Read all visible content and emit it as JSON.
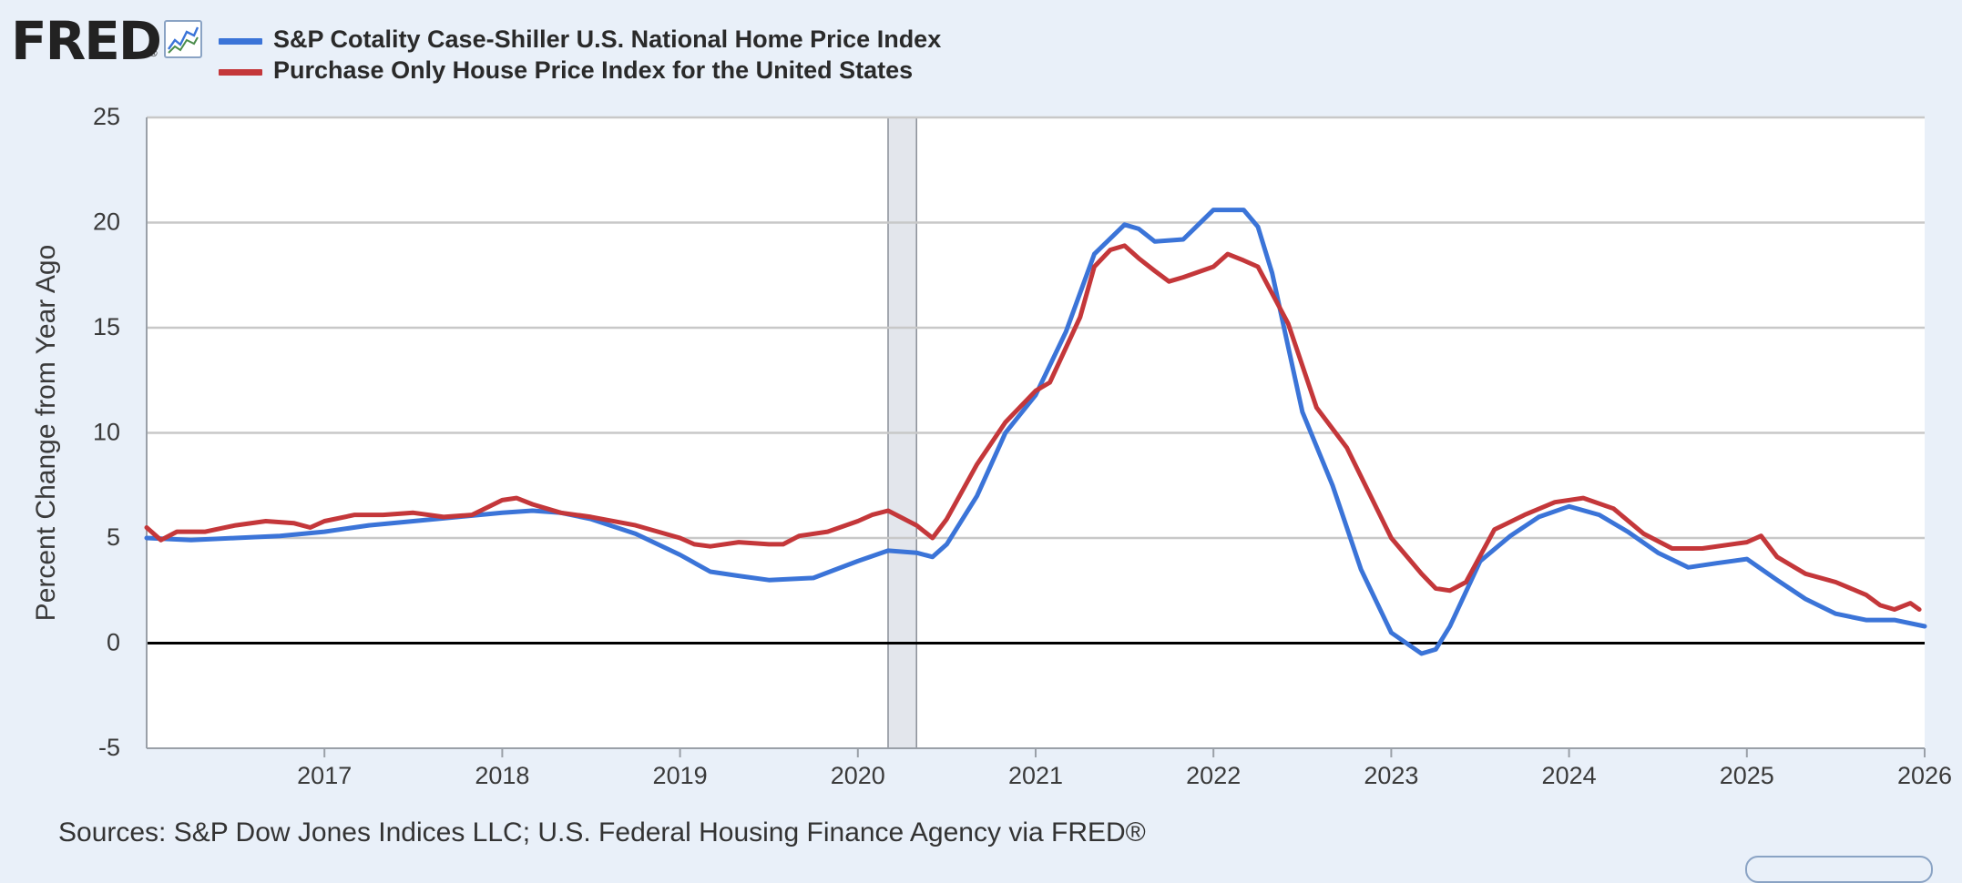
{
  "header": {
    "logo_text": "FRED",
    "logo_reg": "®",
    "chart_icon": "line-chart-icon"
  },
  "colors": {
    "background": "#e9f0f9",
    "plot_background": "#ffffff",
    "series_1": "#3b74d8",
    "series_2": "#c4373a",
    "recession_band": "#e3e6ec",
    "gridline": "#c8c8c8",
    "zero_line": "#000000"
  },
  "footer": {
    "source_text": "Sources: S&P Dow Jones Indices LLC; U.S. Federal Housing Finance Agency via FRED®"
  },
  "chart_data": {
    "type": "line",
    "title": "",
    "xlabel": "",
    "ylabel": "Percent Change from Year Ago",
    "xlim": [
      2016.0,
      2026.0
    ],
    "ylim": [
      -5,
      25
    ],
    "x_ticks": [
      "2017",
      "2018",
      "2019",
      "2020",
      "2021",
      "2022",
      "2023",
      "2024",
      "2025",
      "2026"
    ],
    "y_ticks": [
      "25",
      "20",
      "15",
      "10",
      "5",
      "0",
      "-5"
    ],
    "grid": true,
    "legend_position": "top-left",
    "recession_shading": [
      [
        2020.17,
        2020.33
      ]
    ],
    "series": [
      {
        "name": "S&P Cotality Case-Shiller U.S. National Home Price Index",
        "x": [
          2016.0,
          2016.25,
          2016.5,
          2016.75,
          2017.0,
          2017.25,
          2017.5,
          2017.75,
          2018.0,
          2018.17,
          2018.33,
          2018.5,
          2018.75,
          2019.0,
          2019.17,
          2019.33,
          2019.5,
          2019.75,
          2020.0,
          2020.17,
          2020.33,
          2020.42,
          2020.5,
          2020.67,
          2020.83,
          2021.0,
          2021.17,
          2021.33,
          2021.5,
          2021.58,
          2021.67,
          2021.83,
          2022.0,
          2022.17,
          2022.25,
          2022.33,
          2022.5,
          2022.67,
          2022.83,
          2023.0,
          2023.17,
          2023.25,
          2023.33,
          2023.5,
          2023.67,
          2023.83,
          2024.0,
          2024.17,
          2024.33,
          2024.5,
          2024.67,
          2024.83,
          2025.0,
          2025.17,
          2025.33,
          2025.5,
          2025.67,
          2025.83,
          2026.0
        ],
        "values": [
          5.0,
          4.9,
          5.0,
          5.1,
          5.3,
          5.6,
          5.8,
          6.0,
          6.2,
          6.3,
          6.2,
          5.9,
          5.2,
          4.2,
          3.4,
          3.2,
          3.0,
          3.1,
          3.9,
          4.4,
          4.3,
          4.1,
          4.7,
          7.0,
          10.0,
          11.8,
          14.8,
          18.5,
          19.9,
          19.7,
          19.1,
          19.2,
          20.6,
          20.6,
          19.8,
          17.6,
          11.0,
          7.5,
          3.5,
          0.5,
          -0.5,
          -0.3,
          0.8,
          3.9,
          5.1,
          6.0,
          6.5,
          6.1,
          5.3,
          4.3,
          3.6,
          3.8,
          4.0,
          3.0,
          2.1,
          1.4,
          1.1,
          1.1,
          0.8
        ]
      },
      {
        "name": "Purchase Only House Price Index for the United States",
        "x": [
          2016.0,
          2016.08,
          2016.17,
          2016.33,
          2016.5,
          2016.67,
          2016.83,
          2016.92,
          2017.0,
          2017.17,
          2017.33,
          2017.5,
          2017.67,
          2017.83,
          2018.0,
          2018.08,
          2018.17,
          2018.33,
          2018.5,
          2018.75,
          2019.0,
          2019.08,
          2019.17,
          2019.33,
          2019.5,
          2019.58,
          2019.67,
          2019.83,
          2020.0,
          2020.08,
          2020.17,
          2020.33,
          2020.42,
          2020.5,
          2020.67,
          2020.83,
          2021.0,
          2021.08,
          2021.25,
          2021.33,
          2021.42,
          2021.5,
          2021.58,
          2021.67,
          2021.75,
          2021.83,
          2022.0,
          2022.08,
          2022.17,
          2022.25,
          2022.42,
          2022.58,
          2022.75,
          2023.0,
          2023.17,
          2023.25,
          2023.33,
          2023.42,
          2023.58,
          2023.75,
          2023.92,
          2024.08,
          2024.25,
          2024.42,
          2024.58,
          2024.75,
          2025.0,
          2025.08,
          2025.17,
          2025.33,
          2025.5,
          2025.67,
          2025.75,
          2025.83,
          2025.92,
          2025.97
        ],
        "values": [
          5.5,
          4.9,
          5.3,
          5.3,
          5.6,
          5.8,
          5.7,
          5.5,
          5.8,
          6.1,
          6.1,
          6.2,
          6.0,
          6.1,
          6.8,
          6.9,
          6.6,
          6.2,
          6.0,
          5.6,
          5.0,
          4.7,
          4.6,
          4.8,
          4.7,
          4.7,
          5.1,
          5.3,
          5.8,
          6.1,
          6.3,
          5.6,
          5.0,
          5.9,
          8.5,
          10.5,
          12.0,
          12.4,
          15.5,
          17.9,
          18.7,
          18.9,
          18.3,
          17.7,
          17.2,
          17.4,
          17.9,
          18.5,
          18.2,
          17.9,
          15.2,
          11.2,
          9.3,
          5.0,
          3.3,
          2.6,
          2.5,
          2.9,
          5.4,
          6.1,
          6.7,
          6.9,
          6.4,
          5.2,
          4.5,
          4.5,
          4.8,
          5.1,
          4.1,
          3.3,
          2.9,
          2.3,
          1.8,
          1.6,
          1.9,
          1.6
        ]
      }
    ]
  }
}
